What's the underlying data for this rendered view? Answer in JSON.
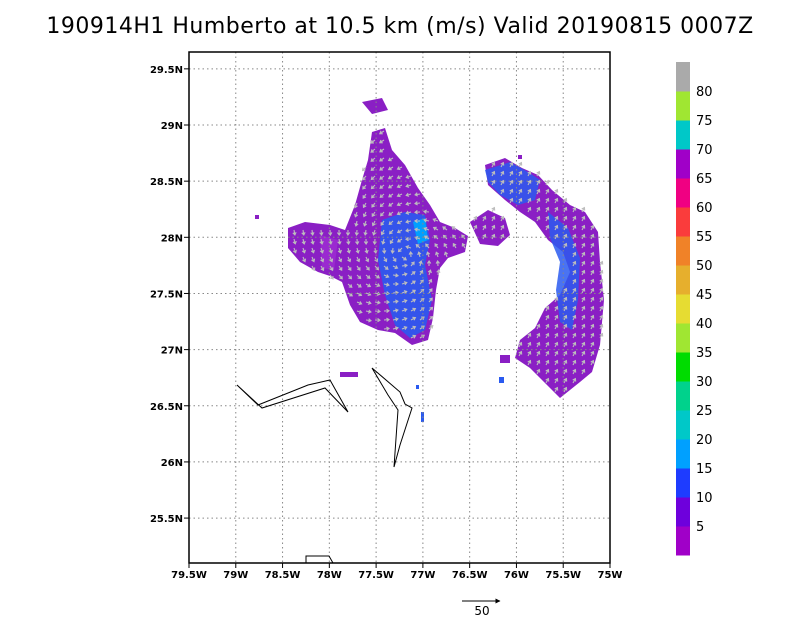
{
  "title": "190914H1 Humberto at 10.5 km (m/s) Valid 20190815 0007Z",
  "map": {
    "lon_range": [
      -79.5,
      -75.0
    ],
    "lat_range": [
      25.1,
      29.65
    ],
    "lon_tick_values": [
      -79.5,
      -79.0,
      -78.5,
      -78.0,
      -77.5,
      -77.0,
      -76.5,
      -76.0,
      -75.5,
      -75.0
    ],
    "lon_tick_labels": [
      "79.5W",
      "79W",
      "78.5W",
      "78W",
      "77.5W",
      "77W",
      "76.5W",
      "76W",
      "75.5W",
      "75W"
    ],
    "lat_tick_values": [
      25.5,
      26.0,
      26.5,
      27.0,
      27.5,
      28.0,
      28.5,
      29.0,
      29.5
    ],
    "lat_tick_labels": [
      "25.5N",
      "26N",
      "26.5N",
      "27N",
      "27.5N",
      "28N",
      "28.5N",
      "29N",
      "29.5N"
    ],
    "grid": true,
    "grid_style": "dotted"
  },
  "colorbar": {
    "labels": [
      "5",
      "10",
      "15",
      "20",
      "25",
      "30",
      "35",
      "40",
      "45",
      "50",
      "55",
      "60",
      "65",
      "70",
      "75",
      "80"
    ],
    "colors": [
      "#a000c8",
      "#6e00dc",
      "#1e3cff",
      "#00a0ff",
      "#00c8c8",
      "#00d28c",
      "#00dc00",
      "#a0e632",
      "#e6dc32",
      "#e6af2d",
      "#f08228",
      "#fa3c3c",
      "#f00082",
      "#a000c8",
      "#00c8c8",
      "#a0e632",
      "#aaaaaa"
    ]
  },
  "reference_vector": {
    "label": "50",
    "units": "m/s"
  }
}
